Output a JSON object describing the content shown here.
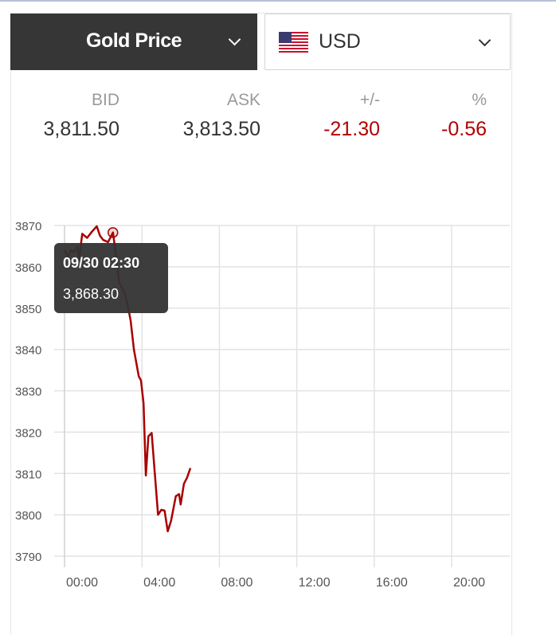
{
  "selector": {
    "metal": "Gold Price",
    "currency": "USD",
    "currency_flag": "us-flag-icon"
  },
  "quote": {
    "headers": [
      "BID",
      "ASK",
      "+/-",
      "%"
    ],
    "values": [
      "3,811.50",
      "3,813.50",
      "-21.30",
      "-0.56"
    ]
  },
  "colors": {
    "line": "#a80000",
    "negative": "#b30000",
    "header_bg": "#363636",
    "tooltip_bg": "#333333"
  },
  "tooltip": {
    "time": "09/30 02:30",
    "value": "3,868.30"
  },
  "chart_data": {
    "type": "line",
    "ylim": [
      3790,
      3870
    ],
    "yticks": [
      "3870",
      "3860",
      "3850",
      "3840",
      "3830",
      "3820",
      "3810",
      "3800",
      "3790"
    ],
    "xticks": [
      "00:00",
      "04:00",
      "08:00",
      "12:00",
      "16:00",
      "20:00"
    ],
    "grid": true,
    "series": [
      {
        "x": [
          "00:00",
          "00:10",
          "00:20",
          "00:30",
          "00:40",
          "00:45",
          "00:55",
          "01:10",
          "01:25",
          "01:40",
          "01:50",
          "02:00",
          "02:15",
          "02:30",
          "02:40",
          "02:50",
          "03:05",
          "03:15",
          "03:25",
          "03:35",
          "03:50",
          "03:57",
          "04:05",
          "04:12",
          "04:20",
          "04:30",
          "04:50",
          "05:00",
          "05:10",
          "05:20",
          "05:30",
          "05:45",
          "05:55",
          "06:00",
          "06:10",
          "06:20",
          "06:30"
        ],
        "values": [
          3864,
          3862.5,
          3864,
          3863.5,
          3865,
          3862,
          3868,
          3867,
          3868.5,
          3869.8,
          3867.5,
          3866.5,
          3866,
          3868.3,
          3862.5,
          3856,
          3854,
          3851,
          3847,
          3840,
          3833.5,
          3832.5,
          3827,
          3809.5,
          3819,
          3819.8,
          3800,
          3801.2,
          3801,
          3796,
          3798.5,
          3804.5,
          3805,
          3802.5,
          3807.5,
          3809,
          3811.3
        ]
      }
    ]
  }
}
